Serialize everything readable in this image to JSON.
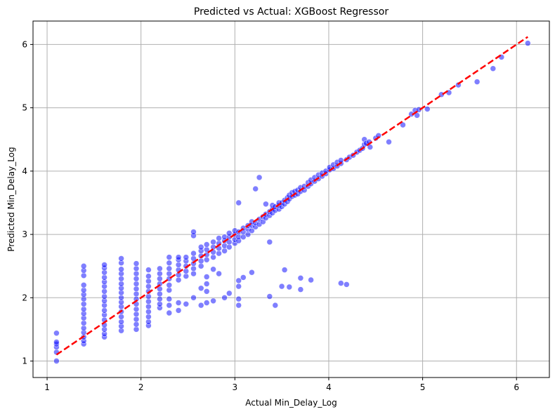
{
  "chart_data": {
    "type": "scatter",
    "title": "Predicted vs Actual: XGBoost Regressor",
    "xlabel": "Actual Min_Delay_Log",
    "ylabel": "Predicted Min_Delay_Log",
    "xlim": [
      0.85,
      6.35
    ],
    "ylim": [
      0.74,
      6.37
    ],
    "xticks": [
      "1",
      "2",
      "3",
      "4",
      "5",
      "6"
    ],
    "yticks": [
      "1",
      "2",
      "3",
      "4",
      "5",
      "6"
    ],
    "grid": true,
    "point_color": "#0000ff",
    "reference_line": {
      "color": "#ff0000",
      "style": "dashed",
      "x": [
        1.1,
        6.12
      ],
      "y": [
        1.1,
        6.12
      ]
    },
    "points": [
      [
        1.1,
        1.0
      ],
      [
        1.1,
        1.14
      ],
      [
        1.1,
        1.22
      ],
      [
        1.1,
        1.27
      ],
      [
        1.1,
        1.3
      ],
      [
        1.1,
        1.44
      ],
      [
        1.39,
        1.27
      ],
      [
        1.39,
        1.32
      ],
      [
        1.39,
        1.38
      ],
      [
        1.39,
        1.45
      ],
      [
        1.39,
        1.52
      ],
      [
        1.39,
        1.6
      ],
      [
        1.39,
        1.68
      ],
      [
        1.39,
        1.75
      ],
      [
        1.39,
        1.82
      ],
      [
        1.39,
        1.9
      ],
      [
        1.39,
        1.98
      ],
      [
        1.39,
        2.05
      ],
      [
        1.39,
        2.12
      ],
      [
        1.39,
        2.2
      ],
      [
        1.39,
        2.35
      ],
      [
        1.39,
        2.43
      ],
      [
        1.39,
        2.5
      ],
      [
        1.61,
        1.38
      ],
      [
        1.61,
        1.43
      ],
      [
        1.61,
        1.5
      ],
      [
        1.61,
        1.57
      ],
      [
        1.61,
        1.65
      ],
      [
        1.61,
        1.73
      ],
      [
        1.61,
        1.8
      ],
      [
        1.61,
        1.88
      ],
      [
        1.61,
        1.95
      ],
      [
        1.61,
        2.02
      ],
      [
        1.61,
        2.1
      ],
      [
        1.61,
        2.18
      ],
      [
        1.61,
        2.25
      ],
      [
        1.61,
        2.32
      ],
      [
        1.61,
        2.4
      ],
      [
        1.61,
        2.47
      ],
      [
        1.61,
        2.52
      ],
      [
        1.79,
        1.48
      ],
      [
        1.79,
        1.55
      ],
      [
        1.79,
        1.62
      ],
      [
        1.79,
        1.7
      ],
      [
        1.79,
        1.78
      ],
      [
        1.79,
        1.86
      ],
      [
        1.79,
        1.93
      ],
      [
        1.79,
        2.0
      ],
      [
        1.79,
        2.08
      ],
      [
        1.79,
        2.15
      ],
      [
        1.79,
        2.22
      ],
      [
        1.79,
        2.3
      ],
      [
        1.79,
        2.38
      ],
      [
        1.79,
        2.45
      ],
      [
        1.79,
        2.55
      ],
      [
        1.79,
        2.62
      ],
      [
        1.95,
        1.5
      ],
      [
        1.95,
        1.58
      ],
      [
        1.95,
        1.66
      ],
      [
        1.95,
        1.74
      ],
      [
        1.95,
        1.82
      ],
      [
        1.95,
        1.9
      ],
      [
        1.95,
        1.98
      ],
      [
        1.95,
        2.06
      ],
      [
        1.95,
        2.14
      ],
      [
        1.95,
        2.22
      ],
      [
        1.95,
        2.3
      ],
      [
        1.95,
        2.38
      ],
      [
        1.95,
        2.46
      ],
      [
        1.95,
        2.54
      ],
      [
        2.08,
        1.56
      ],
      [
        2.08,
        1.62
      ],
      [
        2.08,
        1.7
      ],
      [
        2.08,
        1.78
      ],
      [
        2.08,
        1.86
      ],
      [
        2.08,
        1.94
      ],
      [
        2.08,
        2.02
      ],
      [
        2.08,
        2.1
      ],
      [
        2.08,
        2.18
      ],
      [
        2.08,
        2.26
      ],
      [
        2.08,
        2.34
      ],
      [
        2.08,
        2.44
      ],
      [
        2.2,
        1.84
      ],
      [
        2.2,
        1.9
      ],
      [
        2.2,
        1.98
      ],
      [
        2.2,
        2.06
      ],
      [
        2.2,
        2.14
      ],
      [
        2.2,
        2.22
      ],
      [
        2.2,
        2.3
      ],
      [
        2.2,
        2.38
      ],
      [
        2.2,
        2.46
      ],
      [
        2.3,
        1.76
      ],
      [
        2.3,
        1.88
      ],
      [
        2.3,
        1.98
      ],
      [
        2.3,
        2.12
      ],
      [
        2.3,
        2.2
      ],
      [
        2.3,
        2.3
      ],
      [
        2.3,
        2.38
      ],
      [
        2.3,
        2.46
      ],
      [
        2.3,
        2.55
      ],
      [
        2.3,
        2.64
      ],
      [
        2.4,
        1.8
      ],
      [
        2.4,
        1.92
      ],
      [
        2.4,
        2.28
      ],
      [
        2.4,
        2.36
      ],
      [
        2.4,
        2.44
      ],
      [
        2.4,
        2.52
      ],
      [
        2.4,
        2.6
      ],
      [
        2.4,
        2.64
      ],
      [
        2.48,
        1.9
      ],
      [
        2.48,
        2.34
      ],
      [
        2.48,
        2.42
      ],
      [
        2.48,
        2.5
      ],
      [
        2.48,
        2.58
      ],
      [
        2.48,
        2.64
      ],
      [
        2.56,
        2.0
      ],
      [
        2.56,
        2.38
      ],
      [
        2.56,
        2.46
      ],
      [
        2.56,
        2.54
      ],
      [
        2.56,
        2.62
      ],
      [
        2.56,
        2.7
      ],
      [
        2.56,
        2.98
      ],
      [
        2.56,
        3.04
      ],
      [
        2.64,
        1.88
      ],
      [
        2.64,
        2.15
      ],
      [
        2.64,
        2.5
      ],
      [
        2.64,
        2.58
      ],
      [
        2.64,
        2.66
      ],
      [
        2.64,
        2.74
      ],
      [
        2.64,
        2.8
      ],
      [
        2.7,
        1.92
      ],
      [
        2.7,
        2.1
      ],
      [
        2.7,
        2.22
      ],
      [
        2.7,
        2.33
      ],
      [
        2.7,
        2.6
      ],
      [
        2.7,
        2.68
      ],
      [
        2.7,
        2.76
      ],
      [
        2.7,
        2.84
      ],
      [
        2.77,
        1.95
      ],
      [
        2.77,
        2.45
      ],
      [
        2.77,
        2.64
      ],
      [
        2.77,
        2.72
      ],
      [
        2.77,
        2.8
      ],
      [
        2.77,
        2.88
      ],
      [
        2.83,
        2.38
      ],
      [
        2.83,
        2.7
      ],
      [
        2.83,
        2.78
      ],
      [
        2.83,
        2.86
      ],
      [
        2.83,
        2.94
      ],
      [
        2.89,
        2.0
      ],
      [
        2.89,
        2.74
      ],
      [
        2.89,
        2.82
      ],
      [
        2.89,
        2.9
      ],
      [
        2.89,
        2.96
      ],
      [
        2.94,
        2.07
      ],
      [
        2.94,
        2.8
      ],
      [
        2.94,
        2.88
      ],
      [
        2.94,
        2.96
      ],
      [
        2.94,
        3.02
      ],
      [
        3.0,
        2.86
      ],
      [
        3.0,
        2.92
      ],
      [
        3.0,
        3.0
      ],
      [
        3.0,
        3.06
      ],
      [
        3.04,
        1.88
      ],
      [
        3.04,
        1.98
      ],
      [
        3.04,
        2.18
      ],
      [
        3.04,
        2.27
      ],
      [
        3.04,
        2.9
      ],
      [
        3.04,
        2.96
      ],
      [
        3.04,
        3.04
      ],
      [
        3.04,
        3.5
      ],
      [
        3.09,
        2.32
      ],
      [
        3.09,
        2.96
      ],
      [
        3.09,
        3.04
      ],
      [
        3.09,
        3.1
      ],
      [
        3.14,
        3.0
      ],
      [
        3.14,
        3.08
      ],
      [
        3.14,
        3.14
      ],
      [
        3.18,
        2.4
      ],
      [
        3.18,
        3.06
      ],
      [
        3.18,
        3.14
      ],
      [
        3.18,
        3.2
      ],
      [
        3.22,
        3.12
      ],
      [
        3.22,
        3.18
      ],
      [
        3.22,
        3.72
      ],
      [
        3.26,
        3.16
      ],
      [
        3.26,
        3.24
      ],
      [
        3.26,
        3.9
      ],
      [
        3.3,
        3.2
      ],
      [
        3.3,
        3.28
      ],
      [
        3.33,
        3.26
      ],
      [
        3.33,
        3.32
      ],
      [
        3.33,
        3.48
      ],
      [
        3.37,
        2.02
      ],
      [
        3.37,
        2.88
      ],
      [
        3.37,
        3.3
      ],
      [
        3.37,
        3.36
      ],
      [
        3.4,
        3.34
      ],
      [
        3.4,
        3.4
      ],
      [
        3.4,
        3.46
      ],
      [
        3.43,
        1.88
      ],
      [
        3.43,
        3.38
      ],
      [
        3.43,
        3.44
      ],
      [
        3.47,
        3.4
      ],
      [
        3.47,
        3.46
      ],
      [
        3.47,
        3.5
      ],
      [
        3.5,
        2.18
      ],
      [
        3.5,
        3.44
      ],
      [
        3.5,
        3.5
      ],
      [
        3.53,
        2.44
      ],
      [
        3.53,
        3.48
      ],
      [
        3.53,
        3.54
      ],
      [
        3.56,
        3.52
      ],
      [
        3.56,
        3.58
      ],
      [
        3.58,
        2.17
      ],
      [
        3.58,
        3.56
      ],
      [
        3.58,
        3.62
      ],
      [
        3.61,
        3.6
      ],
      [
        3.61,
        3.66
      ],
      [
        3.64,
        3.62
      ],
      [
        3.64,
        3.68
      ],
      [
        3.67,
        3.64
      ],
      [
        3.67,
        3.7
      ],
      [
        3.7,
        2.13
      ],
      [
        3.7,
        2.31
      ],
      [
        3.7,
        3.68
      ],
      [
        3.7,
        3.74
      ],
      [
        3.74,
        3.7
      ],
      [
        3.74,
        3.76
      ],
      [
        3.78,
        3.76
      ],
      [
        3.78,
        3.82
      ],
      [
        3.81,
        2.28
      ],
      [
        3.81,
        3.8
      ],
      [
        3.81,
        3.86
      ],
      [
        3.85,
        3.84
      ],
      [
        3.85,
        3.9
      ],
      [
        3.89,
        3.88
      ],
      [
        3.89,
        3.94
      ],
      [
        3.93,
        3.92
      ],
      [
        3.93,
        3.97
      ],
      [
        3.97,
        3.96
      ],
      [
        3.97,
        4.0
      ],
      [
        4.01,
        4.02
      ],
      [
        4.01,
        4.06
      ],
      [
        4.05,
        4.04
      ],
      [
        4.05,
        4.1
      ],
      [
        4.09,
        4.08
      ],
      [
        4.09,
        4.14
      ],
      [
        4.13,
        2.23
      ],
      [
        4.13,
        4.12
      ],
      [
        4.13,
        4.17
      ],
      [
        4.19,
        2.21
      ],
      [
        4.19,
        4.18
      ],
      [
        4.22,
        4.22
      ],
      [
        4.26,
        4.25
      ],
      [
        4.3,
        4.3
      ],
      [
        4.33,
        4.33
      ],
      [
        4.36,
        4.36
      ],
      [
        4.38,
        4.42
      ],
      [
        4.38,
        4.5
      ],
      [
        4.4,
        4.44
      ],
      [
        4.43,
        4.46
      ],
      [
        4.44,
        4.38
      ],
      [
        4.5,
        4.52
      ],
      [
        4.53,
        4.56
      ],
      [
        4.64,
        4.46
      ],
      [
        4.79,
        4.73
      ],
      [
        4.88,
        4.9
      ],
      [
        4.92,
        4.96
      ],
      [
        4.94,
        4.88
      ],
      [
        4.96,
        4.97
      ],
      [
        5.05,
        4.98
      ],
      [
        5.2,
        5.21
      ],
      [
        5.28,
        5.24
      ],
      [
        5.38,
        5.36
      ],
      [
        5.58,
        5.41
      ],
      [
        5.75,
        5.62
      ],
      [
        5.84,
        5.8
      ],
      [
        6.12,
        6.02
      ]
    ]
  }
}
